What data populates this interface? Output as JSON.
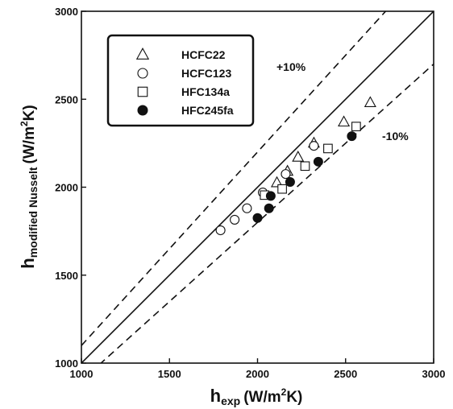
{
  "chart_data": {
    "type": "scatter",
    "xlabel": {
      "main": "h",
      "sub": "exp",
      "unit": "(W/m",
      "unit_sup": "2",
      "unit_end": "K)"
    },
    "ylabel": {
      "main": "h",
      "sub": "modified Nusselt",
      "unit": "(W/m",
      "unit_sup": "2",
      "unit_end": "K)"
    },
    "xlim": [
      1000,
      3000
    ],
    "ylim": [
      1000,
      3000
    ],
    "x_ticks": [
      "1000",
      "1500",
      "2000",
      "2500",
      "3000"
    ],
    "y_ticks": [
      "1000",
      "1500",
      "2000",
      "2500",
      "3000"
    ],
    "grid": false,
    "legend_position": "top-left",
    "reference_lines": [
      {
        "label": "",
        "factor": 1.0,
        "style": "solid"
      },
      {
        "label": "+10%",
        "factor": 1.1,
        "style": "dashed"
      },
      {
        "label": "-10%",
        "factor": 0.9,
        "style": "dashed"
      }
    ],
    "series": [
      {
        "name": "HCFC22",
        "marker": "triangle-open",
        "x": [
          2110,
          2170,
          2230,
          2320,
          2490,
          2640
        ],
        "y": [
          2025,
          2090,
          2170,
          2250,
          2370,
          2480
        ]
      },
      {
        "name": "HCFC123",
        "marker": "circle-open",
        "x": [
          1790,
          1870,
          1940,
          2030,
          2160,
          2320
        ],
        "y": [
          1755,
          1815,
          1880,
          1970,
          2075,
          2235
        ]
      },
      {
        "name": "HFC134a",
        "marker": "square-open",
        "x": [
          2040,
          2140,
          2270,
          2400,
          2560
        ],
        "y": [
          1955,
          1990,
          2120,
          2220,
          2345
        ]
      },
      {
        "name": "HFC245fa",
        "marker": "circle-filled",
        "x": [
          2000,
          2065,
          2075,
          2185,
          2345,
          2535
        ],
        "y": [
          1825,
          1880,
          1950,
          2030,
          2145,
          2290
        ]
      }
    ]
  }
}
